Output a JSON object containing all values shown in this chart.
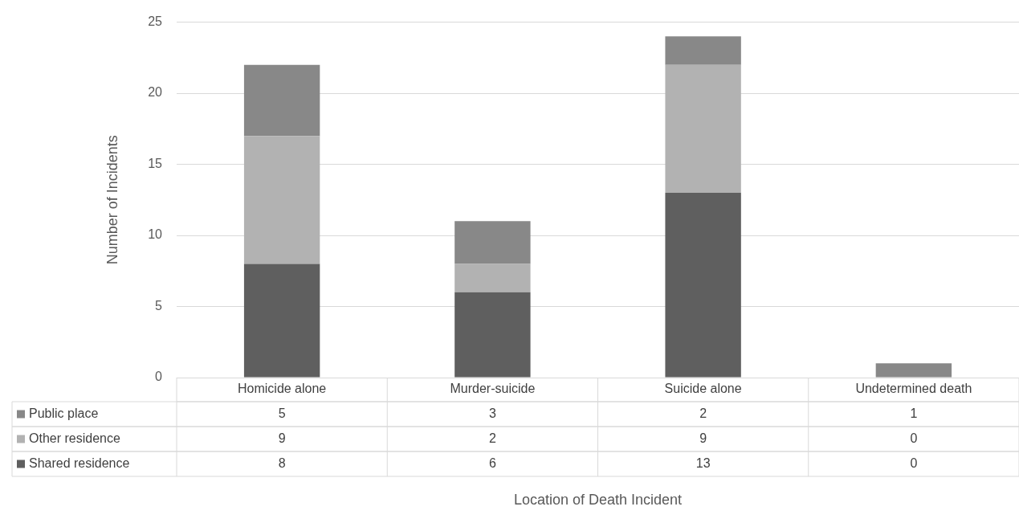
{
  "chart_data": {
    "type": "bar",
    "stacked": true,
    "annotations": [
      "Location of Death Incident"
    ],
    "ylabel": "Number of Incidents",
    "categories": [
      "Homicide alone",
      "Murder-suicide",
      "Suicide alone",
      "Undetermined death"
    ],
    "series": [
      {
        "name": "Shared residence",
        "color": "#5f5f5f",
        "values": [
          8,
          6,
          13,
          0
        ]
      },
      {
        "name": "Other residence",
        "color": "#b2b2b2",
        "values": [
          9,
          2,
          9,
          0
        ]
      },
      {
        "name": "Public place",
        "color": "#888888",
        "values": [
          5,
          3,
          2,
          1
        ]
      }
    ],
    "ylim": [
      0,
      25
    ],
    "yticks": [
      0,
      5,
      10,
      15,
      20,
      25
    ],
    "grid": "y",
    "legend": "bottom",
    "data_labels": true
  }
}
